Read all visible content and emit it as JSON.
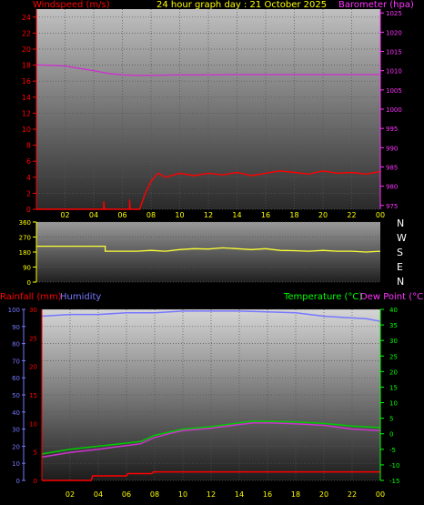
{
  "header": {
    "windspeed_label": "Windspeed (m/s)",
    "title": "24 hour graph day : 21 October 2025",
    "barometer_label": "Barometer (hpa)"
  },
  "compass": [
    "N",
    "W",
    "S",
    "E",
    "N"
  ],
  "lower_header": {
    "rainfall_label": "Rainfall (mm)",
    "humidity_label": "Humidity",
    "temperature_label": "Temperature (°C)",
    "dewpoint_label": "Dew Point (°C)"
  },
  "colors": {
    "windspeed": "#ff0000",
    "gust": "#ff0000",
    "average": "#00cc00",
    "barometer": "#cc33cc",
    "direction": "#ffff33",
    "rainfall": "#ff0000",
    "humidity": "#7777ff",
    "temperature": "#00cc00",
    "dewpoint": "#cc33cc",
    "hour_axis": "#ffff00"
  },
  "chart_data": [
    {
      "type": "line",
      "title": "24 hour graph day : 21 October 2025",
      "xlabel": "",
      "x_ticks": [
        "02",
        "04",
        "06",
        "08",
        "10",
        "12",
        "14",
        "16",
        "18",
        "20",
        "22",
        "00"
      ],
      "xlim": [
        0,
        24
      ],
      "ylabel": "Windspeed (m/s)",
      "y_ticks": [
        0,
        2,
        4,
        6,
        8,
        10,
        12,
        14,
        16,
        18,
        20,
        22,
        24
      ],
      "ylim": [
        0,
        25
      ],
      "y2label": "Barometer (hpa)",
      "y2_ticks": [
        975,
        980,
        985,
        990,
        995,
        1000,
        1005,
        1010,
        1015,
        1020,
        1025
      ],
      "y2lim": [
        974,
        1026
      ],
      "series": [
        {
          "name": "Windspeed (m/s)",
          "axis": "y",
          "color": "#ff0000",
          "x": [
            0,
            4.7,
            4.7,
            4.75,
            6.5,
            6.5,
            6.55,
            7.2,
            7.6,
            8,
            8.5,
            9,
            10,
            11,
            12,
            13,
            14,
            15,
            16,
            17,
            18,
            19,
            20,
            21,
            22,
            23,
            24
          ],
          "values": [
            0,
            0,
            1,
            0,
            0,
            1.2,
            0,
            0,
            2,
            3.5,
            4.5,
            4,
            4.5,
            4.2,
            4.5,
            4.3,
            4.6,
            4.2,
            4.5,
            4.8,
            4.6,
            4.4,
            4.8,
            4.5,
            4.6,
            4.4,
            4.7
          ]
        },
        {
          "name": "Barometer (hpa)",
          "axis": "y2",
          "color": "#cc33cc",
          "x": [
            0,
            1,
            2,
            3,
            4,
            5,
            6,
            7,
            8,
            10,
            12,
            14,
            16,
            18,
            20,
            22,
            24
          ],
          "values": [
            1011.5,
            1011.4,
            1011.2,
            1010.6,
            1010,
            1009.3,
            1008.9,
            1008.8,
            1008.8,
            1008.9,
            1008.9,
            1009,
            1009,
            1009,
            1009,
            1009,
            1009
          ]
        }
      ]
    },
    {
      "type": "line",
      "ylabel": "",
      "y_ticks": [
        0,
        90,
        180,
        270,
        360
      ],
      "ylim": [
        0,
        360
      ],
      "series": [
        {
          "name": "",
          "color": "#ffff33",
          "x": [
            0,
            4.8,
            4.8,
            6,
            7,
            8,
            9,
            10,
            11,
            12,
            13,
            14,
            15,
            16,
            17,
            18,
            19,
            20,
            21,
            22,
            23,
            24
          ],
          "values": [
            215,
            215,
            185,
            185,
            185,
            190,
            185,
            195,
            200,
            198,
            205,
            200,
            195,
            200,
            190,
            188,
            185,
            190,
            185,
            185,
            180,
            185
          ]
        }
      ]
    },
    {
      "type": "line",
      "x_ticks": [
        "02",
        "04",
        "06",
        "08",
        "10",
        "12",
        "14",
        "16",
        "18",
        "20",
        "22",
        "00"
      ],
      "xlim": [
        0,
        24
      ],
      "y_left_outer": "Humidity",
      "y_left_outer_ticks": [
        0,
        10,
        20,
        30,
        40,
        50,
        60,
        70,
        80,
        90,
        100
      ],
      "y_left_inner": "Rainfall (mm)",
      "y_left_inner_ticks": [
        0,
        5,
        10,
        15,
        20,
        25,
        30
      ],
      "y_right": "Temperature (°C)",
      "y_right_ticks": [
        -15,
        -10,
        -5,
        0,
        5,
        10,
        15,
        20,
        25,
        30,
        35,
        40
      ],
      "series": [
        {
          "name": "Humidity",
          "axis": "hum",
          "color": "#7777ff",
          "x": [
            0,
            2,
            4,
            6,
            8,
            10,
            12,
            14,
            16,
            18,
            19,
            20,
            21,
            22,
            23,
            24
          ],
          "values": [
            96,
            97,
            97,
            98,
            98,
            99,
            99,
            99,
            98.5,
            98,
            97,
            96,
            95.5,
            95,
            94.5,
            93
          ]
        },
        {
          "name": "Temperature (°C)",
          "axis": "temp",
          "color": "#00cc00",
          "x": [
            0,
            2,
            4,
            6,
            7,
            8,
            9,
            10,
            12,
            14,
            15,
            16,
            18,
            20,
            22,
            24
          ],
          "values": [
            -6.5,
            -5,
            -4,
            -3,
            -2.5,
            -0.5,
            0.5,
            1.5,
            2.3,
            3.5,
            4.1,
            4,
            3.8,
            3.3,
            2.5,
            2
          ]
        },
        {
          "name": "Dew Point (°C)",
          "axis": "temp",
          "color": "#cc33cc",
          "x": [
            0,
            2,
            4,
            6,
            7,
            8,
            9,
            10,
            12,
            14,
            15,
            16,
            18,
            20,
            22,
            24
          ],
          "values": [
            -7.5,
            -6,
            -5,
            -3.8,
            -3.2,
            -1.2,
            0,
            1,
            1.8,
            3,
            3.5,
            3.5,
            3.2,
            2.7,
            1.5,
            1
          ]
        },
        {
          "name": "Rainfall (mm)",
          "axis": "rain",
          "color": "#ff0000",
          "x": [
            0,
            3.5,
            3.6,
            6,
            6.1,
            7.8,
            7.9,
            24
          ],
          "values": [
            0,
            0,
            0.8,
            0.8,
            1.2,
            1.2,
            1.5,
            1.5
          ]
        }
      ]
    }
  ]
}
